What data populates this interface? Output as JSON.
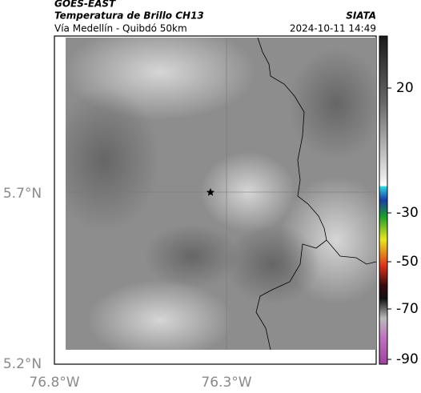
{
  "header": {
    "source": "GOES-EAST",
    "title": "Temperatura de Brillo CH13",
    "subtitle": "Vía Medellín - Quibdó 50km",
    "organization": "SIATA",
    "timestamp": "2024-10-11 14:49"
  },
  "map": {
    "lat_labels": [
      "5.7°N",
      "5.2°N"
    ],
    "lon_labels": [
      "76.8°W",
      "76.3°W"
    ]
  },
  "colorbar": {
    "labels": [
      "20",
      "-30",
      "-50",
      "-70",
      "-90"
    ]
  }
}
